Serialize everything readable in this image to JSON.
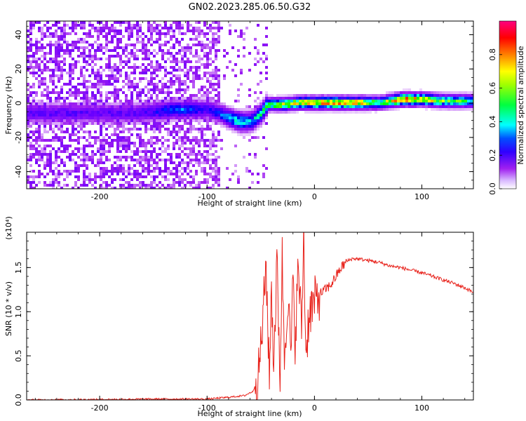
{
  "title": "GN02.2023.285.06.50.G32",
  "chart_data": [
    {
      "type": "heatmap",
      "xlabel": "Height of straight line (km)",
      "ylabel": "Frequency (Hz)",
      "xlim": [
        -268,
        148
      ],
      "ylim": [
        -50,
        48
      ],
      "xticks": [
        -200,
        -100,
        0,
        100
      ],
      "yticks": [
        -40,
        -20,
        0,
        20,
        40
      ],
      "colorbar": {
        "label": "Normalized spectral amplitude",
        "range": [
          0,
          1
        ],
        "ticks": [
          "0.0",
          "0.2",
          "0.4",
          "0.6",
          "0.8"
        ],
        "colormap": [
          "#ffffff",
          "#a020f0",
          "#6a00ff",
          "#0000ff",
          "#00ffff",
          "#00ff00",
          "#ffff00",
          "#ff8000",
          "#ff0000",
          "#ff0080"
        ]
      },
      "ridge": [
        {
          "x": -165,
          "y": -5,
          "amp": 0.25
        },
        {
          "x": -130,
          "y": -3,
          "amp": 0.4
        },
        {
          "x": -100,
          "y": -3,
          "amp": 0.3
        },
        {
          "x": -90,
          "y": -5,
          "amp": 0.35
        },
        {
          "x": -80,
          "y": -8,
          "amp": 0.45
        },
        {
          "x": -70,
          "y": -10,
          "amp": 0.5
        },
        {
          "x": -60,
          "y": -10,
          "amp": 0.45
        },
        {
          "x": -50,
          "y": -5,
          "amp": 0.5
        },
        {
          "x": -45,
          "y": 0,
          "amp": 0.55
        },
        {
          "x": -30,
          "y": 0,
          "amp": 0.65
        },
        {
          "x": -15,
          "y": 1,
          "amp": 0.7
        },
        {
          "x": 0,
          "y": 1,
          "amp": 0.75
        },
        {
          "x": 20,
          "y": 1,
          "amp": 0.8
        },
        {
          "x": 40,
          "y": 1,
          "amp": 0.75
        },
        {
          "x": 60,
          "y": 1,
          "amp": 0.55
        },
        {
          "x": 80,
          "y": 3,
          "amp": 0.85
        },
        {
          "x": 100,
          "y": 3,
          "amp": 0.75
        },
        {
          "x": 120,
          "y": 2,
          "amp": 0.6
        },
        {
          "x": 148,
          "y": 2,
          "amp": 0.55
        }
      ]
    },
    {
      "type": "line",
      "xlabel": "Height of straight line (km)",
      "ylabel": "SNR (10 * v/v)",
      "yscale_label": "(x10⁴)",
      "xlim": [
        -268,
        148
      ],
      "ylim": [
        0,
        1.9
      ],
      "xticks": [
        -200,
        -100,
        0,
        100
      ],
      "yticks": [
        "0.0",
        "0.5",
        "1.0",
        "1.5"
      ],
      "series": [
        {
          "color": "#e8231c",
          "x": [
            -268,
            -200,
            -150,
            -100,
            -80,
            -65,
            -57,
            -52,
            -48,
            -45,
            -42,
            -40,
            -38,
            -35,
            -32,
            -30,
            -28,
            -25,
            -22,
            -20,
            -18,
            -15,
            -12,
            -10,
            -8,
            -5,
            0,
            5,
            10,
            15,
            20,
            25,
            30,
            35,
            40,
            50,
            60,
            70,
            80,
            90,
            100,
            110,
            120,
            130,
            140,
            148
          ],
          "values": [
            0.0,
            0.005,
            0.01,
            0.01,
            0.03,
            0.05,
            0.1,
            0.3,
            0.9,
            1.55,
            0.2,
            1.3,
            0.4,
            1.55,
            0.3,
            1.6,
            0.5,
            1.2,
            0.5,
            1.3,
            0.7,
            1.5,
            0.8,
            1.9,
            0.5,
            1.0,
            1.1,
            1.2,
            1.25,
            1.3,
            1.4,
            1.5,
            1.57,
            1.6,
            1.6,
            1.58,
            1.56,
            1.52,
            1.5,
            1.47,
            1.44,
            1.4,
            1.36,
            1.32,
            1.27,
            1.22
          ]
        }
      ]
    }
  ]
}
